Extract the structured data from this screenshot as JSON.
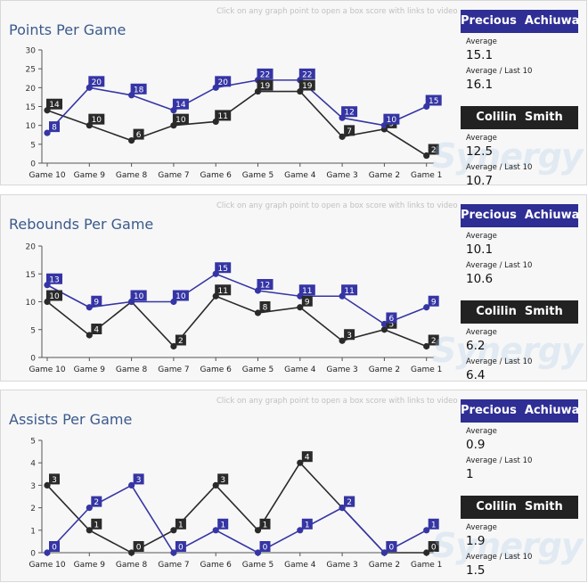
{
  "hint": "Click on any graph point to open a box score with links to video",
  "players": [
    {
      "name": "Precious  Achiuwa",
      "color": "#3535a5"
    },
    {
      "name": "Colilin  Smith",
      "color": "#2a2a2a"
    }
  ],
  "watermark": "Synergy",
  "chart_data": [
    {
      "type": "line",
      "title": "Points Per Game",
      "categories": [
        "Game 10",
        "Game 9",
        "Game 8",
        "Game 7",
        "Game 6",
        "Game 5",
        "Game 4",
        "Game 3",
        "Game 2",
        "Game 1"
      ],
      "ylim": [
        0,
        30
      ],
      "yticks": [
        0,
        5,
        10,
        15,
        20,
        25,
        30
      ],
      "series": [
        {
          "name": "Precious  Achiuwa",
          "values": [
            8,
            20,
            18,
            14,
            20,
            22,
            22,
            12,
            10,
            15
          ]
        },
        {
          "name": "Colilin  Smith",
          "values": [
            14,
            10,
            6,
            10,
            11,
            19,
            19,
            7,
            9,
            2
          ]
        }
      ],
      "stats": [
        {
          "avg_label": "Average",
          "avg": "15.1",
          "last_label": "Average / Last 10",
          "last": "16.1"
        },
        {
          "avg_label": "Average",
          "avg": "12.5",
          "last_label": "Average / Last 10",
          "last": "10.7"
        }
      ]
    },
    {
      "type": "line",
      "title": "Rebounds Per Game",
      "categories": [
        "Game 10",
        "Game 9",
        "Game 8",
        "Game 7",
        "Game 6",
        "Game 5",
        "Game 4",
        "Game 3",
        "Game 2",
        "Game 1"
      ],
      "ylim": [
        0,
        20
      ],
      "yticks": [
        0,
        5,
        10,
        15,
        20
      ],
      "series": [
        {
          "name": "Precious  Achiuwa",
          "values": [
            13,
            9,
            10,
            10,
            15,
            12,
            11,
            11,
            6,
            9
          ]
        },
        {
          "name": "Colilin  Smith",
          "values": [
            10,
            4,
            10,
            2,
            11,
            8,
            9,
            3,
            5,
            2
          ]
        }
      ],
      "stats": [
        {
          "avg_label": "Average",
          "avg": "10.1",
          "last_label": "Average / Last 10",
          "last": "10.6"
        },
        {
          "avg_label": "Average",
          "avg": "6.2",
          "last_label": "Average / Last 10",
          "last": "6.4"
        }
      ]
    },
    {
      "type": "line",
      "title": "Assists Per Game",
      "categories": [
        "Game 10",
        "Game 9",
        "Game 8",
        "Game 7",
        "Game 6",
        "Game 5",
        "Game 4",
        "Game 3",
        "Game 2",
        "Game 1"
      ],
      "ylim": [
        0,
        5
      ],
      "yticks": [
        0,
        1,
        2,
        3,
        4,
        5
      ],
      "series": [
        {
          "name": "Precious  Achiuwa",
          "values": [
            0,
            2,
            3,
            0,
            1,
            0,
            1,
            2,
            0,
            1
          ]
        },
        {
          "name": "Colilin  Smith",
          "values": [
            3,
            1,
            0,
            1,
            3,
            1,
            4,
            2,
            0,
            0
          ]
        }
      ],
      "stats": [
        {
          "avg_label": "Average",
          "avg": "0.9",
          "last_label": "Average / Last 10",
          "last": "1"
        },
        {
          "avg_label": "Average",
          "avg": "1.9",
          "last_label": "Average / Last 10",
          "last": "1.5"
        }
      ]
    }
  ]
}
